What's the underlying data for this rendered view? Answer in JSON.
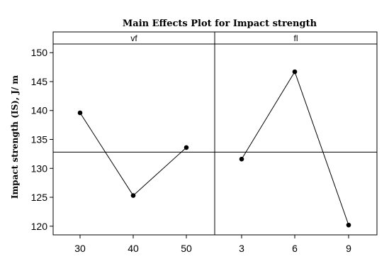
{
  "chart_data": {
    "type": "line",
    "title": "Main Effects Plot  for  Impact strength",
    "ylabel": "Impact strength (IS), J/ m",
    "ylim": [
      118.5,
      151.5
    ],
    "yticks": [
      120,
      125,
      130,
      135,
      140,
      145,
      150
    ],
    "mean_line": 132.8,
    "grid": false,
    "panels": [
      {
        "name": "vf",
        "x": [
          "30",
          "40",
          "50"
        ],
        "values": [
          139.6,
          125.3,
          133.6
        ]
      },
      {
        "name": "fl",
        "x": [
          "3",
          "6",
          "9"
        ],
        "values": [
          131.6,
          146.7,
          120.2
        ]
      }
    ],
    "colors": {
      "line": "#000000",
      "marker": "#000000",
      "background": "#ffffff"
    }
  }
}
